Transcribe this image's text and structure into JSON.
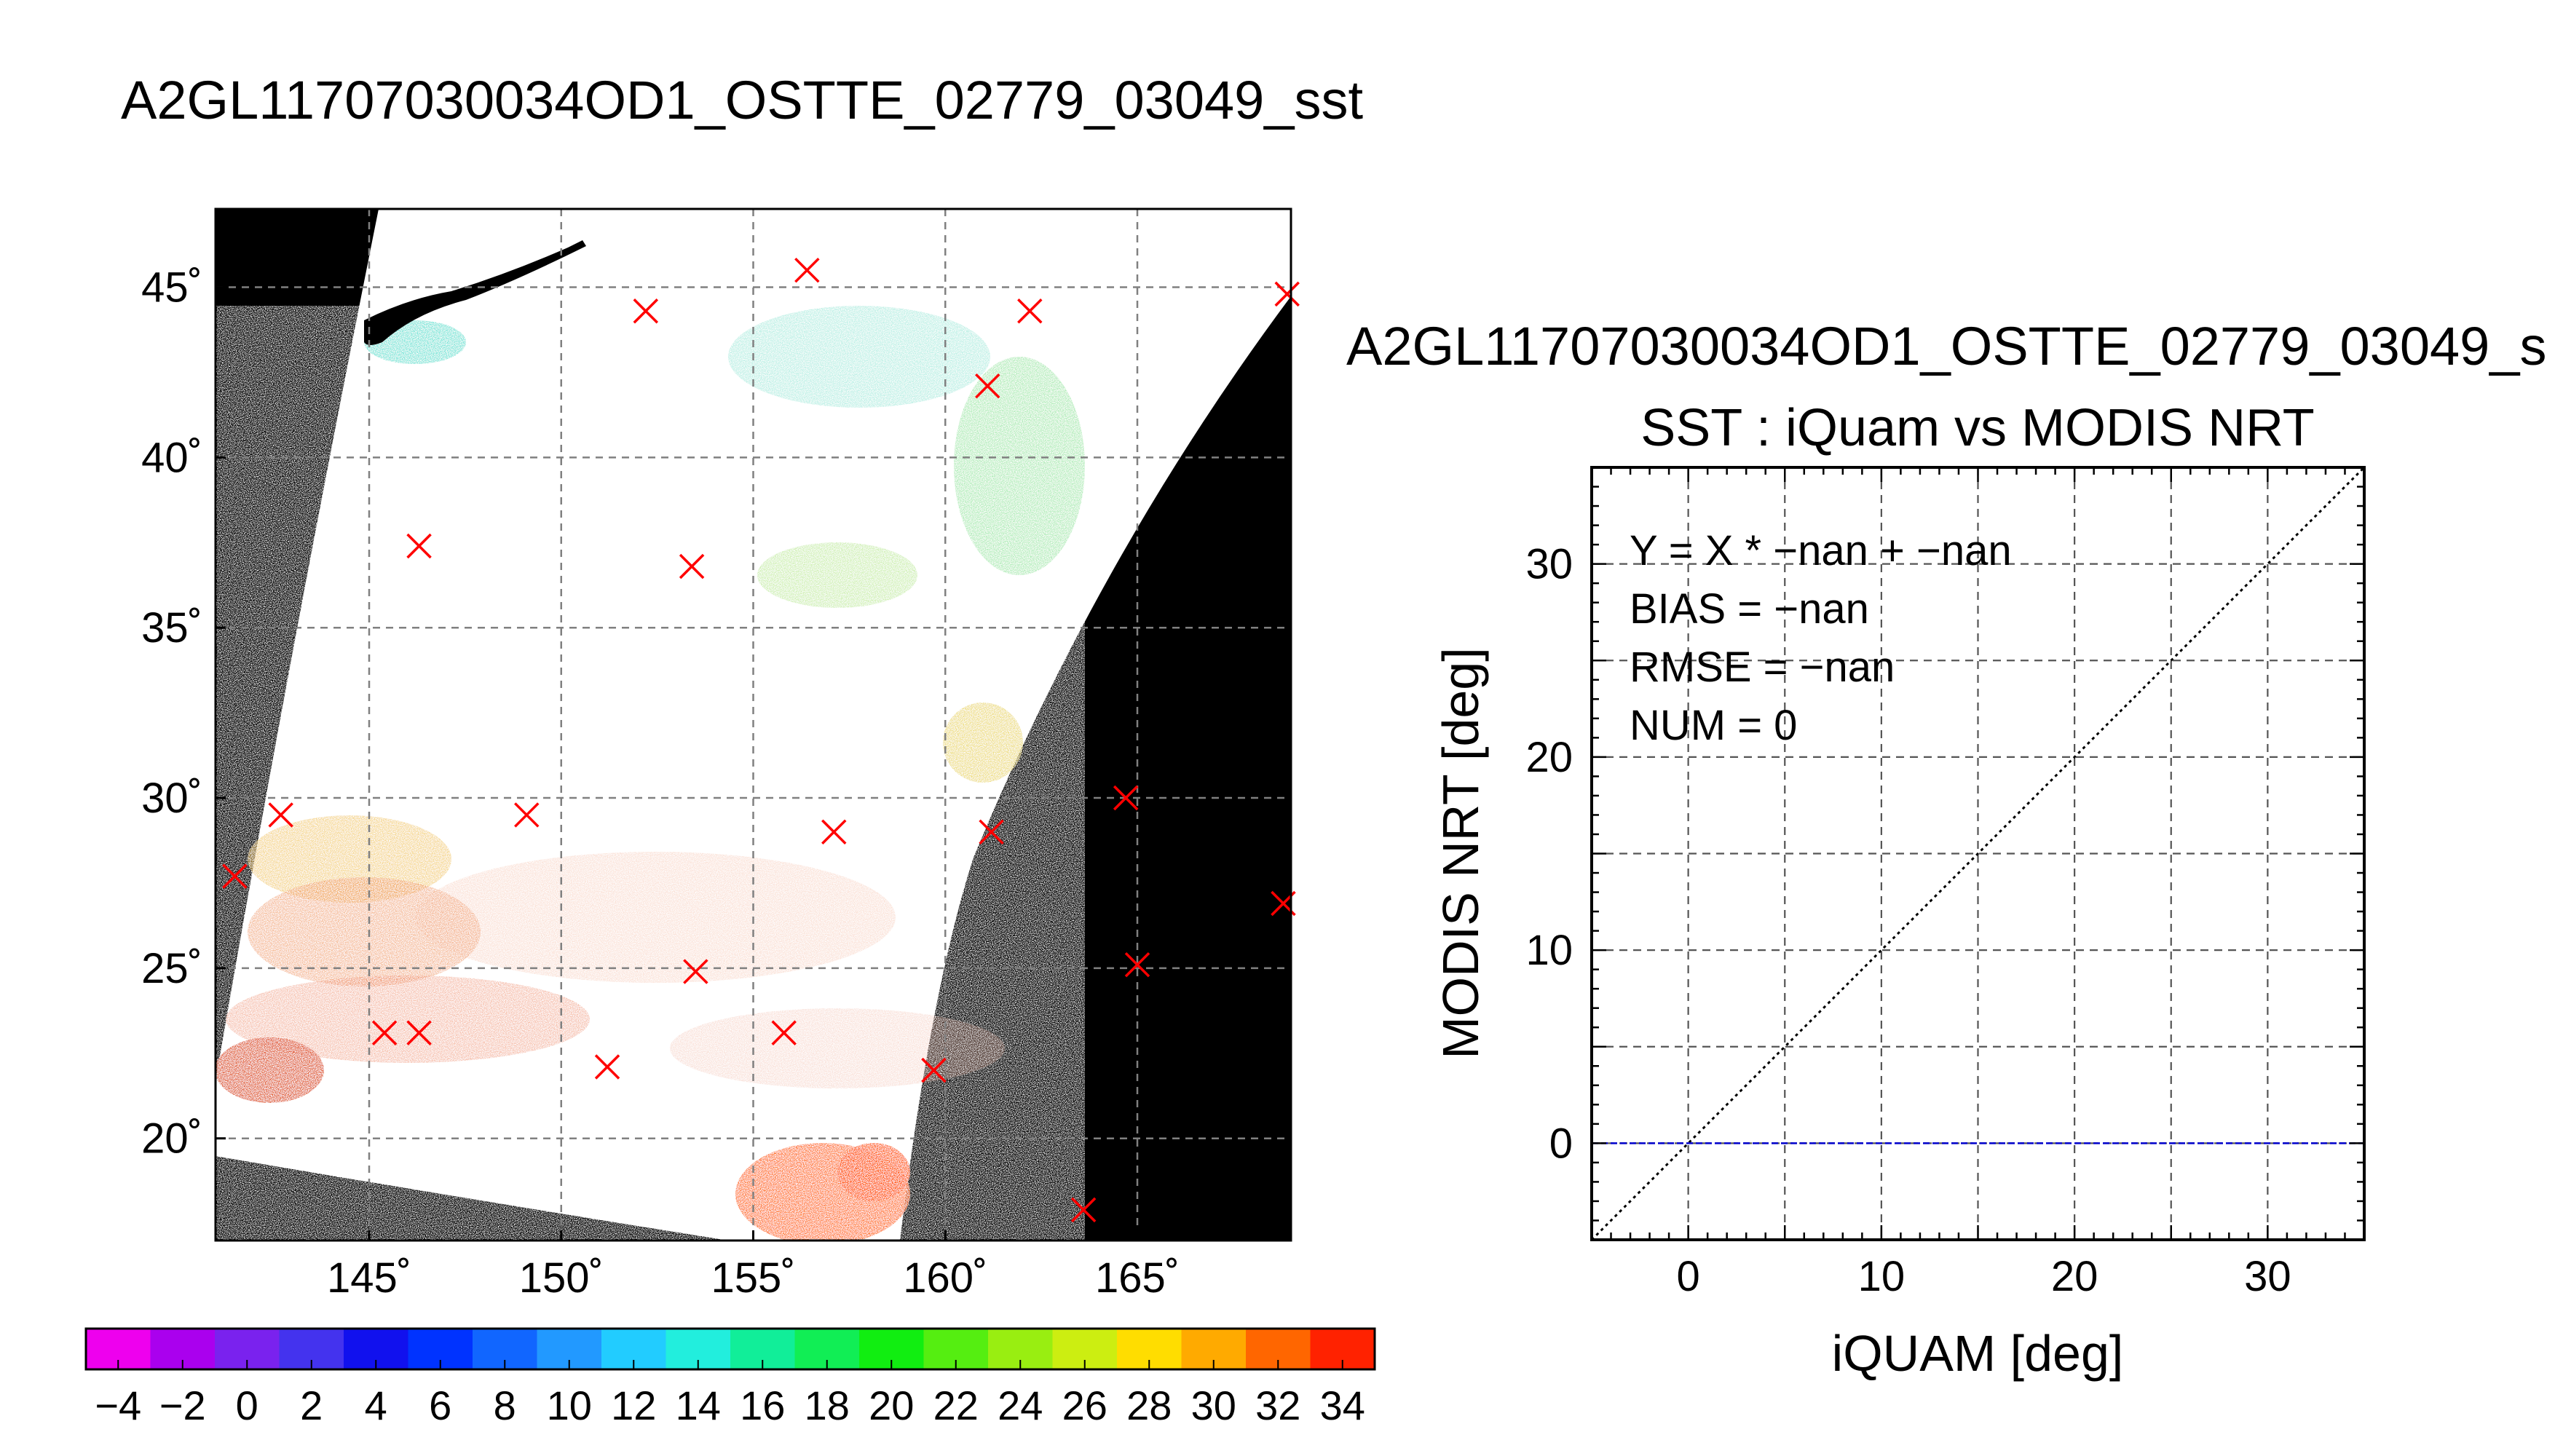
{
  "header": {
    "title": "A2GL11707030034OD1_OSTTE_02779_03049_sst"
  },
  "chart_data": [
    {
      "type": "scatter",
      "subtype": "map",
      "lon_ticks": [
        "145˚",
        "150˚",
        "155˚",
        "160˚",
        "165˚"
      ],
      "lon_values": [
        145,
        150,
        155,
        160,
        165
      ],
      "lat_ticks": [
        "45˚",
        "40˚",
        "35˚",
        "30˚",
        "25˚",
        "20˚"
      ],
      "lat_values": [
        45,
        40,
        35,
        30,
        25,
        20
      ],
      "xlim": [
        141,
        169
      ],
      "ylim": [
        17,
        47.3
      ],
      "grid": true,
      "markers": [
        {
          "lon": 152.2,
          "lat": 44.3
        },
        {
          "lon": 156.4,
          "lat": 45.5
        },
        {
          "lon": 162.2,
          "lat": 44.3
        },
        {
          "lon": 168.9,
          "lat": 44.8
        },
        {
          "lon": 161.1,
          "lat": 42.1
        },
        {
          "lon": 146.3,
          "lat": 37.4
        },
        {
          "lon": 153.4,
          "lat": 36.8
        },
        {
          "lon": 141.5,
          "lat": 27.7
        },
        {
          "lon": 142.7,
          "lat": 29.5
        },
        {
          "lon": 149.1,
          "lat": 29.5
        },
        {
          "lon": 157.1,
          "lat": 29.0
        },
        {
          "lon": 161.2,
          "lat": 29.0
        },
        {
          "lon": 164.7,
          "lat": 30.0
        },
        {
          "lon": 168.8,
          "lat": 26.9
        },
        {
          "lon": 153.5,
          "lat": 24.9
        },
        {
          "lon": 145.4,
          "lat": 23.1
        },
        {
          "lon": 146.3,
          "lat": 23.1
        },
        {
          "lon": 155.8,
          "lat": 23.1
        },
        {
          "lon": 151.2,
          "lat": 22.1
        },
        {
          "lon": 159.7,
          "lat": 22.0
        },
        {
          "lon": 165.0,
          "lat": 25.1
        },
        {
          "lon": 163.6,
          "lat": 17.9
        }
      ],
      "colors": {
        "land_or_nodata": "#000000",
        "marker": "#ff0000",
        "grid": "#808080"
      }
    },
    {
      "type": "colorbar",
      "min": -5,
      "max": 35,
      "step": 2,
      "tick_labels": [
        "−4",
        "−2",
        "0",
        "2",
        "4",
        "6",
        "8",
        "10",
        "12",
        "14",
        "16",
        "18",
        "20",
        "22",
        "24",
        "26",
        "28",
        "30",
        "32",
        "34"
      ],
      "tick_values": [
        -4,
        -2,
        0,
        2,
        4,
        6,
        8,
        10,
        12,
        14,
        16,
        18,
        20,
        22,
        24,
        26,
        28,
        30,
        32,
        34
      ],
      "colors": [
        "#ee00ee",
        "#aa00ee",
        "#7a22ee",
        "#4433ee",
        "#1111ee",
        "#0033ff",
        "#1166ff",
        "#2299ff",
        "#22ccff",
        "#22eedd",
        "#11ee99",
        "#11ee55",
        "#11ee11",
        "#55ee11",
        "#99ee11",
        "#ccee11",
        "#ffdd00",
        "#ffaa00",
        "#ff6600",
        "#ff2200"
      ]
    },
    {
      "type": "scatter",
      "title": "A2GL11707030034OD1_OSTTE_02779_03049_s",
      "subtitle": "SST : iQuam vs MODIS NRT",
      "xlabel": "iQUAM [deg]",
      "ylabel": "MODIS NRT [deg]",
      "xlim": [
        -5,
        35
      ],
      "ylim": [
        -5,
        35
      ],
      "x_ticks": [
        0,
        10,
        20,
        30
      ],
      "x_tick_labels": [
        "0",
        "10",
        "20",
        "30"
      ],
      "y_ticks": [
        0,
        10,
        20,
        30
      ],
      "y_tick_labels": [
        "0",
        "10",
        "20",
        "30"
      ],
      "grid": true,
      "points": [],
      "series": [
        {
          "style": "dotted",
          "color": "#000000",
          "x": [
            -5,
            35
          ],
          "y": [
            -5,
            35
          ]
        },
        {
          "style": "dashed",
          "color": "#0000cc",
          "x": [
            -5,
            35
          ],
          "y": [
            0,
            0
          ]
        }
      ],
      "annotations": [
        "Y = X * −nan + −nan",
        "BIAS = −nan",
        "RMSE = −nan",
        "NUM = 0"
      ]
    }
  ]
}
